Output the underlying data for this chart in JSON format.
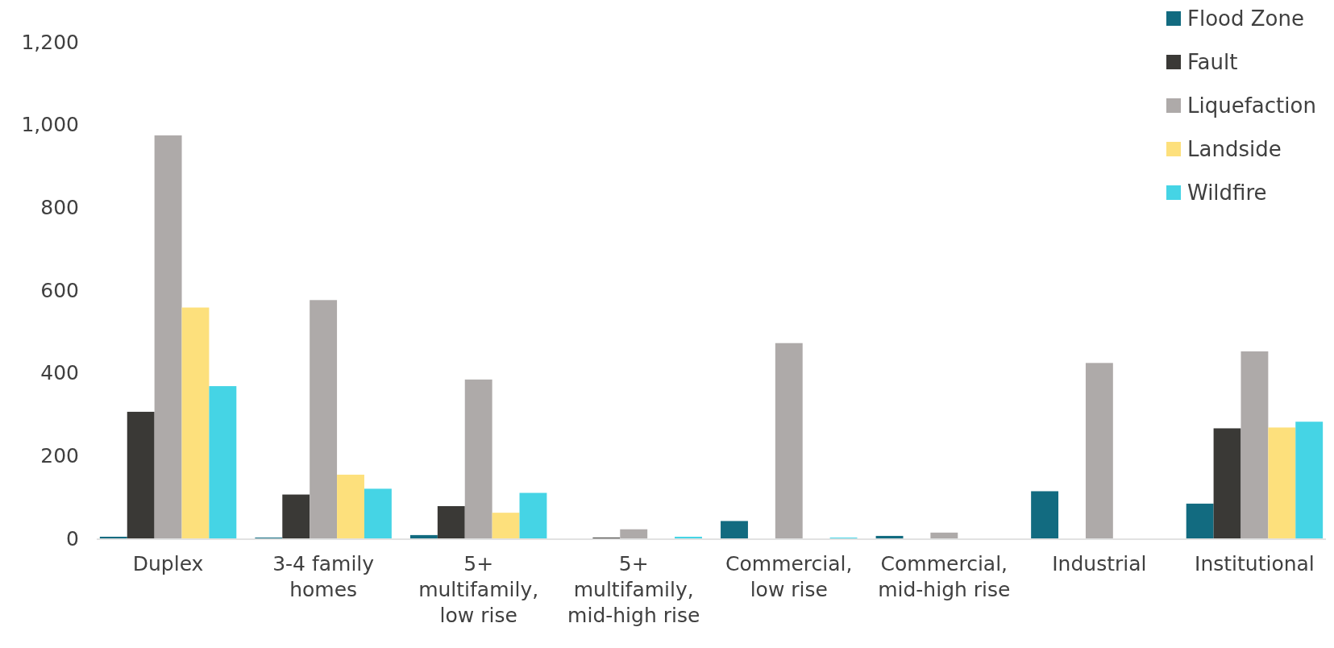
{
  "chart_data": {
    "type": "bar",
    "categories": [
      "Duplex",
      "3-4 family homes",
      "5+ multifamily, low rise",
      "5+ multifamily, mid-high rise",
      "Commercial, low rise",
      "Commercial, mid-high rise",
      "Industrial",
      "Institutional"
    ],
    "series": [
      {
        "name": "Flood Zone",
        "color": "#126b80",
        "values": [
          4,
          2,
          8,
          0,
          42,
          6,
          114,
          84
        ]
      },
      {
        "name": "Fault",
        "color": "#3a3936",
        "values": [
          306,
          106,
          78,
          2,
          0,
          0,
          0,
          266
        ]
      },
      {
        "name": "Liquefaction",
        "color": "#aeaaa9",
        "values": [
          974,
          576,
          384,
          22,
          472,
          14,
          424,
          452
        ]
      },
      {
        "name": "Landside",
        "color": "#fde07c",
        "values": [
          558,
          154,
          62,
          0,
          0,
          0,
          0,
          268
        ]
      },
      {
        "name": "Wildfire",
        "color": "#45d4e5",
        "values": [
          368,
          120,
          110,
          4,
          2,
          0,
          0,
          282
        ]
      }
    ],
    "ylim": [
      0,
      1200
    ],
    "yticks": [
      {
        "value": 0,
        "label": "0"
      },
      {
        "value": 200,
        "label": "200"
      },
      {
        "value": 400,
        "label": "400"
      },
      {
        "value": 600,
        "label": "600"
      },
      {
        "value": 800,
        "label": "800"
      },
      {
        "value": 1000,
        "label": "1,000"
      },
      {
        "value": 1200,
        "label": "1,200"
      }
    ],
    "grid": false,
    "legend": "top right"
  }
}
